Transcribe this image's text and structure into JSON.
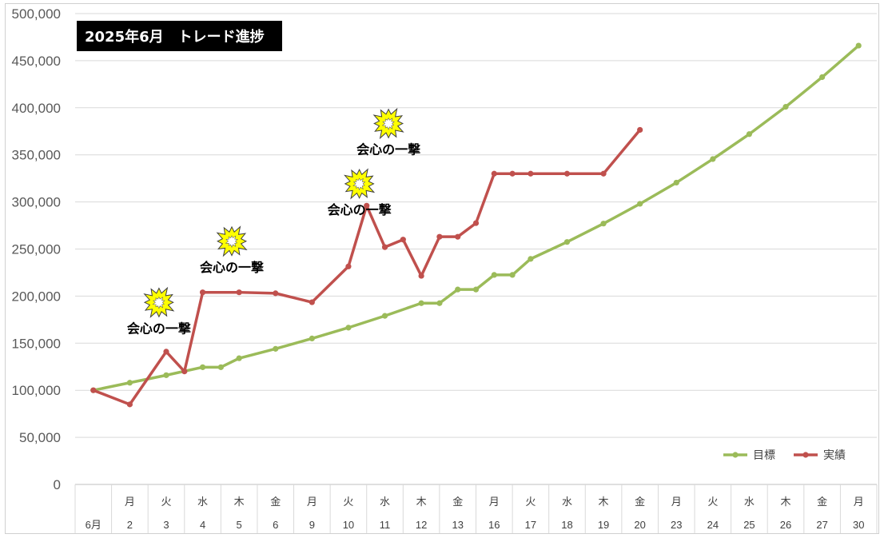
{
  "chart_data": {
    "type": "line",
    "title": "2025年6月　トレード進捗",
    "ylim": [
      0,
      500000
    ],
    "yticks": [
      "0",
      "50,000",
      "100,000",
      "150,000",
      "200,000",
      "250,000",
      "300,000",
      "350,000",
      "400,000",
      "450,000",
      "500,000"
    ],
    "ytick_values": [
      0,
      50000,
      100000,
      150000,
      200000,
      250000,
      300000,
      350000,
      400000,
      450000,
      500000
    ],
    "grid": true,
    "legend_placement": "bottom-right",
    "categories": [
      {
        "day": "",
        "num": "6月"
      },
      {
        "day": "月",
        "num": "2"
      },
      {
        "day": "火",
        "num": "3"
      },
      {
        "day": "水",
        "num": "4"
      },
      {
        "day": "木",
        "num": "5"
      },
      {
        "day": "金",
        "num": "6"
      },
      {
        "day": "月",
        "num": "9"
      },
      {
        "day": "火",
        "num": "10"
      },
      {
        "day": "水",
        "num": "11"
      },
      {
        "day": "木",
        "num": "12"
      },
      {
        "day": "金",
        "num": "13"
      },
      {
        "day": "月",
        "num": "16"
      },
      {
        "day": "火",
        "num": "17"
      },
      {
        "day": "水",
        "num": "18"
      },
      {
        "day": "木",
        "num": "19"
      },
      {
        "day": "金",
        "num": "20"
      },
      {
        "day": "月",
        "num": "23"
      },
      {
        "day": "火",
        "num": "24"
      },
      {
        "day": "水",
        "num": "25"
      },
      {
        "day": "木",
        "num": "26"
      },
      {
        "day": "金",
        "num": "27"
      },
      {
        "day": "月",
        "num": "30"
      }
    ],
    "series": [
      {
        "name": "目標",
        "color": "#9BBB59",
        "x": [
          0,
          1,
          2,
          3,
          3.5,
          4,
          5,
          6,
          7,
          8,
          9,
          9.5,
          10,
          10.5,
          11,
          11.5,
          12,
          13,
          14,
          15,
          16,
          17,
          18,
          19,
          20,
          21
        ],
        "values": [
          100000,
          108000,
          116000,
          124500,
          124500,
          134000,
          144000,
          155000,
          166500,
          179000,
          192500,
          192500,
          207000,
          207000,
          222500,
          222500,
          239500,
          257500,
          277000,
          298000,
          320500,
          345500,
          372000,
          401000,
          432500,
          466000
        ]
      },
      {
        "name": "実績",
        "color": "#C0504D",
        "x": [
          0,
          1,
          2,
          2.5,
          3,
          4,
          5,
          6,
          7,
          7.5,
          8,
          8.5,
          9,
          9.5,
          10,
          10.5,
          11,
          11.5,
          12,
          13,
          14,
          15
        ],
        "values": [
          100000,
          85000,
          141000,
          120000,
          204000,
          204000,
          203000,
          193500,
          231500,
          296000,
          252000,
          260000,
          221500,
          263000,
          263000,
          277500,
          330000,
          330000,
          330000,
          330000,
          330000,
          376500
        ]
      }
    ],
    "annotations": [
      {
        "text": "会心の一撃",
        "x": 1.8,
        "value": 161000
      },
      {
        "text": "会心の一撃",
        "x": 3.8,
        "value": 226000
      },
      {
        "text": "会心の一撃",
        "x": 7.3,
        "value": 287000
      },
      {
        "text": "会心の一撃",
        "x": 8.1,
        "value": 351000
      }
    ],
    "annotation_icon": "burst-star-icon"
  }
}
